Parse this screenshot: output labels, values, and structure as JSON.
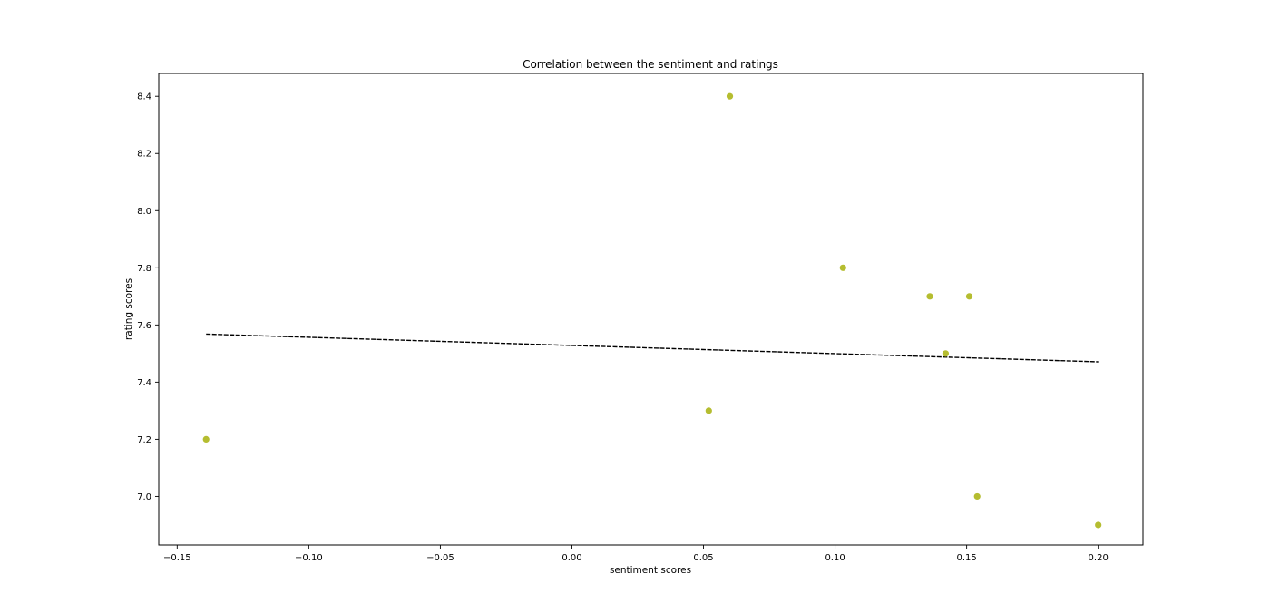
{
  "chart_data": {
    "type": "scatter",
    "title": "Correlation between the sentiment and ratings",
    "xlabel": "sentiment scores",
    "ylabel": "rating scores",
    "xlim": [
      -0.157,
      0.217
    ],
    "ylim": [
      6.83,
      8.48
    ],
    "xticks": [
      -0.15,
      -0.1,
      -0.05,
      0.0,
      0.05,
      0.1,
      0.15,
      0.2
    ],
    "xtick_labels": [
      "−0.15",
      "−0.10",
      "−0.05",
      "0.00",
      "0.05",
      "0.10",
      "0.15",
      "0.20"
    ],
    "yticks": [
      7.0,
      7.2,
      7.4,
      7.6,
      7.8,
      8.0,
      8.2,
      8.4
    ],
    "ytick_labels": [
      "7.0",
      "7.2",
      "7.4",
      "7.6",
      "7.8",
      "8.0",
      "8.2",
      "8.4"
    ],
    "grid": false,
    "series": [
      {
        "kind": "points",
        "color": "#b5bd30",
        "x": [
          -0.139,
          0.052,
          0.06,
          0.103,
          0.136,
          0.142,
          0.151,
          0.154,
          0.2
        ],
        "y": [
          7.2,
          7.3,
          8.4,
          7.8,
          7.7,
          7.5,
          7.7,
          7.0,
          6.9
        ]
      },
      {
        "kind": "trend-line",
        "color": "#000000",
        "style": "dashed",
        "x": [
          -0.139,
          0.2
        ],
        "y": [
          7.568,
          7.471
        ]
      }
    ]
  }
}
